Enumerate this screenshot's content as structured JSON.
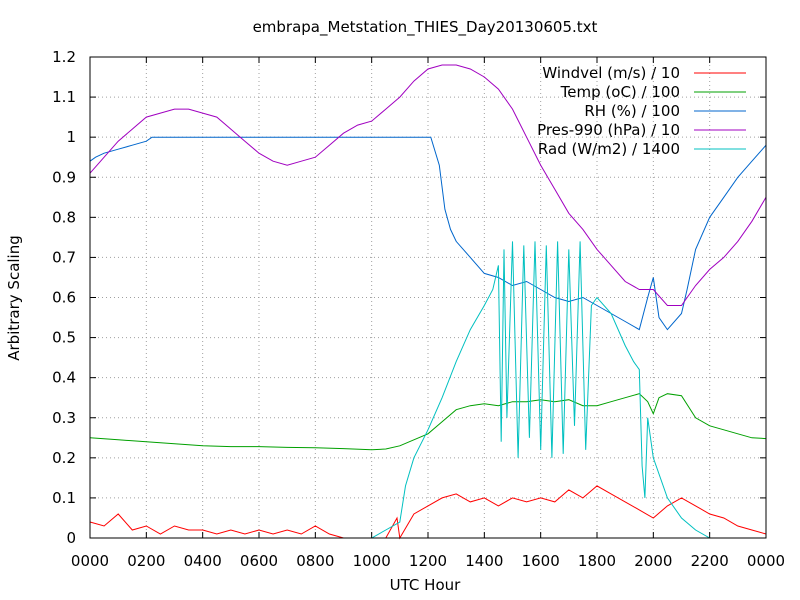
{
  "chart_data": {
    "type": "line",
    "title": "embrapa_Metstation_THIES_Day20130605.txt",
    "xlabel": "UTC Hour",
    "ylabel": "Arbitrary Scaling",
    "xlim": [
      0,
      24
    ],
    "ylim": [
      0,
      1.2
    ],
    "grid": true,
    "legend_position": "top-right",
    "x_ticks": [
      {
        "value": 0,
        "label": "0000"
      },
      {
        "value": 2,
        "label": "0200"
      },
      {
        "value": 4,
        "label": "0400"
      },
      {
        "value": 6,
        "label": "0600"
      },
      {
        "value": 8,
        "label": "0800"
      },
      {
        "value": 10,
        "label": "1000"
      },
      {
        "value": 12,
        "label": "1200"
      },
      {
        "value": 14,
        "label": "1400"
      },
      {
        "value": 16,
        "label": "1600"
      },
      {
        "value": 18,
        "label": "1800"
      },
      {
        "value": 20,
        "label": "2000"
      },
      {
        "value": 22,
        "label": "2200"
      },
      {
        "value": 24,
        "label": "0000"
      }
    ],
    "y_ticks": [
      {
        "value": 0,
        "label": "0"
      },
      {
        "value": 0.1,
        "label": "0.1"
      },
      {
        "value": 0.2,
        "label": "0.2"
      },
      {
        "value": 0.3,
        "label": "0.3"
      },
      {
        "value": 0.4,
        "label": "0.4"
      },
      {
        "value": 0.5,
        "label": "0.5"
      },
      {
        "value": 0.6,
        "label": "0.6"
      },
      {
        "value": 0.7,
        "label": "0.7"
      },
      {
        "value": 0.8,
        "label": "0.8"
      },
      {
        "value": 0.9,
        "label": "0.9"
      },
      {
        "value": 1.0,
        "label": "1"
      },
      {
        "value": 1.1,
        "label": "1.1"
      },
      {
        "value": 1.2,
        "label": "1.2"
      }
    ],
    "series": [
      {
        "name": "Windvel (m/s) / 10",
        "color": "#ff0000",
        "x": [
          0,
          0.5,
          1,
          1.5,
          2,
          2.5,
          3,
          3.5,
          4,
          4.5,
          5,
          5.5,
          6,
          6.5,
          7,
          7.5,
          8,
          8.5,
          9,
          9.5,
          10,
          10.5,
          10.9,
          11,
          11.5,
          12,
          12.5,
          13,
          13.5,
          14,
          14.5,
          15,
          15.5,
          16,
          16.5,
          17,
          17.5,
          18,
          18.5,
          19,
          19.5,
          20,
          20.5,
          21,
          21.5,
          22,
          22.5,
          23,
          23.5,
          24
        ],
        "y": [
          0.04,
          0.03,
          0.06,
          0.02,
          0.03,
          0.01,
          0.03,
          0.02,
          0.02,
          0.01,
          0.02,
          0.01,
          0.02,
          0.01,
          0.02,
          0.01,
          0.03,
          0.01,
          0.0,
          0.0,
          0.0,
          0.0,
          0.05,
          0.0,
          0.06,
          0.08,
          0.1,
          0.11,
          0.09,
          0.1,
          0.08,
          0.1,
          0.09,
          0.1,
          0.09,
          0.12,
          0.1,
          0.13,
          0.11,
          0.09,
          0.07,
          0.05,
          0.08,
          0.1,
          0.08,
          0.06,
          0.05,
          0.03,
          0.02,
          0.01
        ]
      },
      {
        "name": "Temp (oC) / 100",
        "color": "#00a000",
        "x": [
          0,
          1,
          2,
          3,
          4,
          5,
          6,
          7,
          8,
          9,
          10,
          10.5,
          11,
          11.5,
          12,
          12.5,
          13,
          13.5,
          14,
          14.5,
          15,
          15.5,
          16,
          16.5,
          17,
          17.5,
          18,
          18.5,
          19,
          19.5,
          19.8,
          20,
          20.2,
          20.5,
          21,
          21.5,
          22,
          22.5,
          23,
          23.5,
          24
        ],
        "y": [
          0.25,
          0.245,
          0.24,
          0.235,
          0.23,
          0.228,
          0.228,
          0.226,
          0.225,
          0.223,
          0.22,
          0.222,
          0.23,
          0.245,
          0.26,
          0.29,
          0.32,
          0.33,
          0.335,
          0.33,
          0.34,
          0.34,
          0.345,
          0.34,
          0.345,
          0.33,
          0.33,
          0.34,
          0.35,
          0.36,
          0.34,
          0.31,
          0.35,
          0.36,
          0.355,
          0.3,
          0.28,
          0.27,
          0.26,
          0.25,
          0.248
        ]
      },
      {
        "name": "RH (%) / 100",
        "color": "#0066cc",
        "x": [
          0,
          0.2,
          0.5,
          1,
          1.5,
          2,
          2.2,
          3,
          4,
          5,
          6,
          7,
          8,
          9,
          10,
          11,
          12,
          12.1,
          12.4,
          12.6,
          12.8,
          13,
          13.5,
          14,
          14.5,
          15,
          15.5,
          16,
          16.5,
          17,
          17.5,
          18,
          18.5,
          19,
          19.5,
          19.8,
          20,
          20.2,
          20.5,
          21,
          21.2,
          21.5,
          22,
          22.5,
          23,
          23.5,
          24
        ],
        "y": [
          0.94,
          0.95,
          0.96,
          0.97,
          0.98,
          0.99,
          1.0,
          1.0,
          1.0,
          1.0,
          1.0,
          1.0,
          1.0,
          1.0,
          1.0,
          1.0,
          1.0,
          1.0,
          0.93,
          0.82,
          0.77,
          0.74,
          0.7,
          0.66,
          0.65,
          0.63,
          0.64,
          0.62,
          0.6,
          0.59,
          0.6,
          0.58,
          0.56,
          0.54,
          0.52,
          0.6,
          0.65,
          0.55,
          0.52,
          0.56,
          0.62,
          0.72,
          0.8,
          0.85,
          0.9,
          0.94,
          0.98
        ]
      },
      {
        "name": "Pres-990 (hPa) / 10",
        "color": "#a000c0",
        "x": [
          0,
          0.5,
          1,
          1.5,
          2,
          2.5,
          3,
          3.5,
          4,
          4.5,
          5,
          5.5,
          6,
          6.5,
          7,
          7.5,
          8,
          8.5,
          9,
          9.5,
          10,
          10.5,
          11,
          11.5,
          12,
          12.5,
          13,
          13.5,
          14,
          14.5,
          15,
          15.5,
          16,
          16.5,
          17,
          17.5,
          18,
          18.5,
          19,
          19.5,
          20,
          20.5,
          21,
          21.5,
          22,
          22.5,
          23,
          23.5,
          24
        ],
        "y": [
          0.91,
          0.95,
          0.99,
          1.02,
          1.05,
          1.06,
          1.07,
          1.07,
          1.06,
          1.05,
          1.02,
          0.99,
          0.96,
          0.94,
          0.93,
          0.94,
          0.95,
          0.98,
          1.01,
          1.03,
          1.04,
          1.07,
          1.1,
          1.14,
          1.17,
          1.18,
          1.18,
          1.17,
          1.15,
          1.12,
          1.07,
          1.0,
          0.93,
          0.87,
          0.81,
          0.77,
          0.72,
          0.68,
          0.64,
          0.62,
          0.62,
          0.58,
          0.58,
          0.63,
          0.67,
          0.7,
          0.74,
          0.79,
          0.85
        ]
      },
      {
        "name": "Rad (W/m2) / 1400",
        "color": "#00c0c0",
        "x": [
          0,
          10,
          10.5,
          11,
          11.2,
          11.5,
          12,
          12.5,
          13,
          13.5,
          14,
          14.3,
          14.5,
          14.6,
          14.7,
          14.8,
          15,
          15.2,
          15.4,
          15.6,
          15.8,
          16,
          16.2,
          16.4,
          16.6,
          16.8,
          17,
          17.2,
          17.4,
          17.6,
          17.8,
          18,
          18.5,
          19,
          19.3,
          19.5,
          19.6,
          19.7,
          19.8,
          20,
          20.5,
          21,
          21.5,
          22,
          24
        ],
        "y": [
          0,
          0,
          0.02,
          0.04,
          0.13,
          0.2,
          0.27,
          0.35,
          0.44,
          0.52,
          0.58,
          0.62,
          0.68,
          0.24,
          0.72,
          0.3,
          0.74,
          0.2,
          0.73,
          0.25,
          0.74,
          0.22,
          0.73,
          0.2,
          0.74,
          0.21,
          0.72,
          0.28,
          0.74,
          0.22,
          0.58,
          0.6,
          0.56,
          0.48,
          0.44,
          0.42,
          0.18,
          0.1,
          0.3,
          0.2,
          0.1,
          0.05,
          0.02,
          0,
          0
        ]
      }
    ]
  }
}
